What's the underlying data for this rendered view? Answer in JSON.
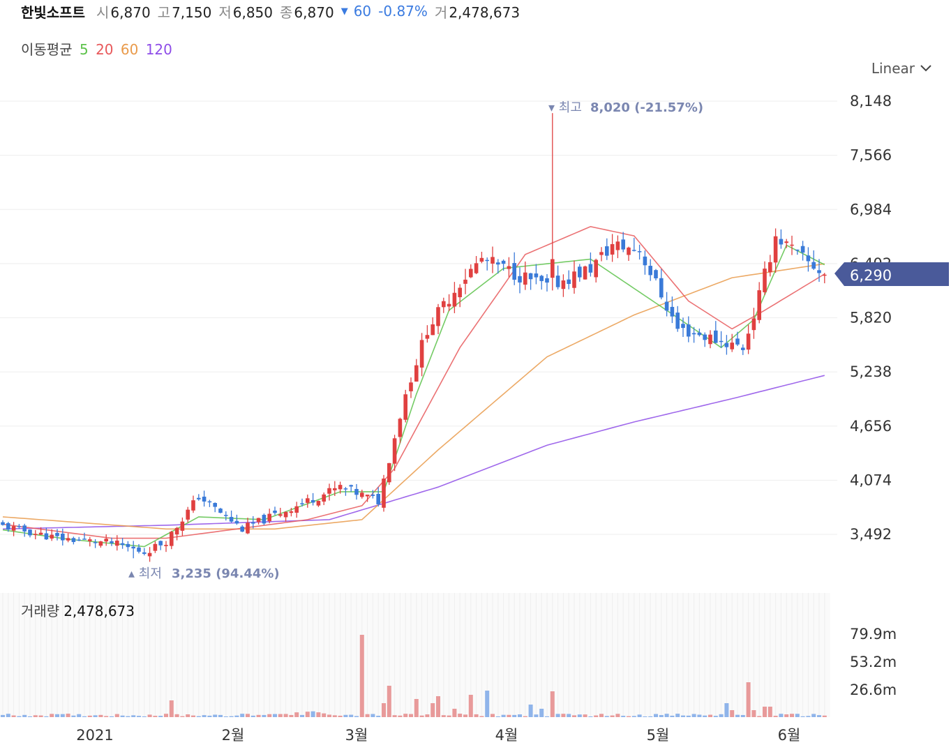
{
  "header": {
    "name": "한빛소프트",
    "open_label": "시",
    "open": "6,870",
    "high_label": "고",
    "high": "7,150",
    "low_label": "저",
    "low": "6,850",
    "close_label": "종",
    "close": "6,870",
    "change": "60",
    "change_pct": "-0.87%",
    "volume_label": "거",
    "volume": "2,478,673"
  },
  "ma_legend": {
    "label": "이동평균",
    "items": [
      {
        "period": "5",
        "color": "#5cc24a"
      },
      {
        "period": "20",
        "color": "#e8585a"
      },
      {
        "period": "60",
        "color": "#e99a4a"
      },
      {
        "period": "120",
        "color": "#8e4de8"
      }
    ]
  },
  "scale_select": {
    "value": "Linear"
  },
  "volume_panel": {
    "label": "거래량",
    "value": "2,478,673"
  },
  "colors": {
    "up": "#e04040",
    "down": "#3a7ad8",
    "current_tag": "#4a5a9a",
    "annotation": "#7a86b0"
  },
  "chart_data": {
    "type": "candlestick",
    "y_ticks": [
      8148,
      7566,
      6984,
      6402,
      5820,
      5238,
      4656,
      4074,
      3492
    ],
    "y_tick_labels": [
      "8,148",
      "7,566",
      "6,984",
      "6,402",
      "5,820",
      "5,238",
      "4,656",
      "4,074",
      "3,492"
    ],
    "x_labels": [
      "2021",
      "2월",
      "3월",
      "4월",
      "5월",
      "6월"
    ],
    "current_price": "6,290",
    "max_annotation": {
      "label": "최고",
      "value": "8,020 (-21.57%)"
    },
    "min_annotation": {
      "label": "최저",
      "value": "3,235 (94.44%)"
    },
    "volume_ticks": [
      "79.9m",
      "53.2m",
      "26.6m"
    ],
    "waypoints": [
      [
        0,
        3580
      ],
      [
        10,
        3450
      ],
      [
        20,
        3400
      ],
      [
        26,
        3300
      ],
      [
        30,
        3420
      ],
      [
        36,
        3900
      ],
      [
        44,
        3550
      ],
      [
        54,
        3800
      ],
      [
        62,
        4000
      ],
      [
        69,
        3850
      ],
      [
        74,
        5000
      ],
      [
        78,
        5700
      ],
      [
        84,
        6200
      ],
      [
        88,
        6450
      ],
      [
        94,
        6300
      ],
      [
        100,
        6150
      ],
      [
        108,
        6350
      ],
      [
        112,
        6600
      ],
      [
        117,
        6550
      ],
      [
        124,
        5700
      ],
      [
        129,
        5620
      ],
      [
        136,
        5500
      ],
      [
        138,
        5850
      ],
      [
        142,
        6700
      ],
      [
        147,
        6450
      ],
      [
        151,
        6290
      ]
    ],
    "ma5_anchor": [
      [
        0,
        3540
      ],
      [
        12,
        3440
      ],
      [
        26,
        3360
      ],
      [
        36,
        3680
      ],
      [
        48,
        3650
      ],
      [
        62,
        3950
      ],
      [
        70,
        3950
      ],
      [
        76,
        5000
      ],
      [
        82,
        5900
      ],
      [
        92,
        6350
      ],
      [
        108,
        6450
      ],
      [
        124,
        5820
      ],
      [
        132,
        5500
      ],
      [
        138,
        5800
      ],
      [
        144,
        6600
      ],
      [
        151,
        6390
      ]
    ],
    "ma20_anchor": [
      [
        0,
        3600
      ],
      [
        20,
        3450
      ],
      [
        30,
        3450
      ],
      [
        56,
        3650
      ],
      [
        66,
        3800
      ],
      [
        72,
        4200
      ],
      [
        84,
        5500
      ],
      [
        96,
        6500
      ],
      [
        108,
        6800
      ],
      [
        116,
        6700
      ],
      [
        126,
        6000
      ],
      [
        134,
        5700
      ],
      [
        140,
        5900
      ],
      [
        151,
        6290
      ]
    ],
    "ma60_anchor": [
      [
        0,
        3680
      ],
      [
        30,
        3550
      ],
      [
        50,
        3550
      ],
      [
        66,
        3650
      ],
      [
        80,
        4400
      ],
      [
        100,
        5400
      ],
      [
        116,
        5850
      ],
      [
        134,
        6250
      ],
      [
        151,
        6400
      ]
    ],
    "ma120_anchor": [
      [
        0,
        3550
      ],
      [
        30,
        3590
      ],
      [
        60,
        3650
      ],
      [
        80,
        4000
      ],
      [
        100,
        4450
      ],
      [
        116,
        4700
      ],
      [
        134,
        4950
      ],
      [
        151,
        5200
      ]
    ]
  }
}
